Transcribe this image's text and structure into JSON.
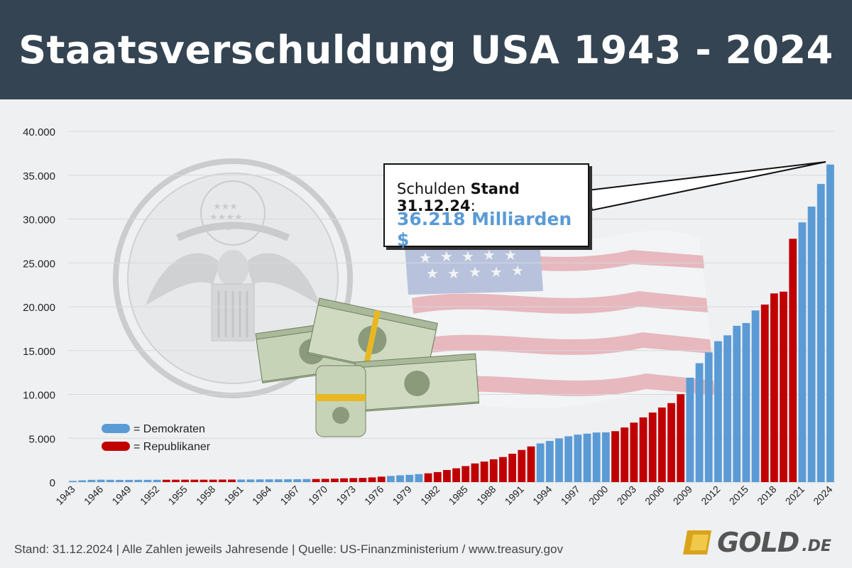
{
  "header": {
    "title": "Staatsverschuldung USA 1943 - 2024"
  },
  "colors": {
    "democrat": "#5b9bd5",
    "republican": "#c00000",
    "header_bg": "#344452"
  },
  "callout": {
    "prefix": "Schulden ",
    "bold": "Stand 31.12.24",
    "suffix": ":",
    "value": "36.218 Milliarden $"
  },
  "legend": {
    "democrat_label": "= Demokraten",
    "republican_label": "= Republikaner"
  },
  "footer": {
    "text": "Stand: 31.12.2024  |  Alle Zahlen jeweils Jahresende  |  Quelle: US-Finanzministerium / www.treasury.gov"
  },
  "logo": {
    "word": "GOLD",
    "tld": ".DE"
  },
  "decor": {
    "seal_icon": "great-seal-icon",
    "money_icon": "dollar-bills-icon",
    "flag_icon": "us-flag-icon"
  },
  "chart_data": {
    "type": "bar",
    "title": "Staatsverschuldung USA 1943 - 2024",
    "xlabel": "",
    "ylabel": "",
    "ylim": [
      0,
      40000
    ],
    "yticks": [
      0,
      5000,
      10000,
      15000,
      20000,
      25000,
      30000,
      35000,
      40000
    ],
    "ytick_labels": [
      "0",
      "5.000",
      "10.000",
      "15.000",
      "20.000",
      "25.000",
      "30.000",
      "35.000",
      "40.000"
    ],
    "xtick_labels": [
      "1943",
      "1946",
      "1949",
      "1952",
      "1955",
      "1958",
      "1961",
      "1964",
      "1967",
      "1970",
      "1973",
      "1976",
      "1979",
      "1982",
      "1985",
      "1988",
      "1991",
      "1994",
      "1997",
      "2000",
      "2003",
      "2006",
      "2009",
      "2012",
      "2015",
      "2018",
      "2021",
      "2024"
    ],
    "categories": [
      1943,
      1944,
      1945,
      1946,
      1947,
      1948,
      1949,
      1950,
      1951,
      1952,
      1953,
      1954,
      1955,
      1956,
      1957,
      1958,
      1959,
      1960,
      1961,
      1962,
      1963,
      1964,
      1965,
      1966,
      1967,
      1968,
      1969,
      1970,
      1971,
      1972,
      1973,
      1974,
      1975,
      1976,
      1977,
      1978,
      1979,
      1980,
      1981,
      1982,
      1983,
      1984,
      1985,
      1986,
      1987,
      1988,
      1989,
      1990,
      1991,
      1992,
      1993,
      1994,
      1995,
      1996,
      1997,
      1998,
      1999,
      2000,
      2001,
      2002,
      2003,
      2004,
      2005,
      2006,
      2007,
      2008,
      2009,
      2010,
      2011,
      2012,
      2013,
      2014,
      2015,
      2016,
      2017,
      2018,
      2019,
      2020,
      2021,
      2022,
      2023,
      2024
    ],
    "values": [
      137,
      201,
      258,
      270,
      258,
      252,
      253,
      257,
      255,
      259,
      266,
      271,
      274,
      273,
      271,
      276,
      285,
      286,
      289,
      298,
      306,
      312,
      317,
      320,
      326,
      348,
      354,
      371,
      398,
      427,
      458,
      475,
      533,
      620,
      699,
      772,
      827,
      908,
      998,
      1142,
      1377,
      1572,
      1823,
      2125,
      2340,
      2602,
      2857,
      3233,
      3665,
      4065,
      4411,
      4693,
      4974,
      5225,
      5413,
      5526,
      5656,
      5674,
      5807,
      6228,
      6783,
      7379,
      7933,
      8507,
      9008,
      10025,
      11910,
      13562,
      14790,
      16066,
      16738,
      17824,
      18141,
      19573,
      20245,
      21516,
      21716,
      27748,
      29617,
      31419,
      34001,
      36218
    ],
    "parties": [
      "D",
      "D",
      "D",
      "D",
      "D",
      "D",
      "D",
      "D",
      "D",
      "D",
      "R",
      "R",
      "R",
      "R",
      "R",
      "R",
      "R",
      "R",
      "D",
      "D",
      "D",
      "D",
      "D",
      "D",
      "D",
      "D",
      "R",
      "R",
      "R",
      "R",
      "R",
      "R",
      "R",
      "R",
      "D",
      "D",
      "D",
      "D",
      "R",
      "R",
      "R",
      "R",
      "R",
      "R",
      "R",
      "R",
      "R",
      "R",
      "R",
      "R",
      "D",
      "D",
      "D",
      "D",
      "D",
      "D",
      "D",
      "D",
      "R",
      "R",
      "R",
      "R",
      "R",
      "R",
      "R",
      "R",
      "D",
      "D",
      "D",
      "D",
      "D",
      "D",
      "D",
      "D",
      "R",
      "R",
      "R",
      "R",
      "D",
      "D",
      "D",
      "D"
    ],
    "legend": [
      {
        "name": "Demokraten",
        "party": "D"
      },
      {
        "name": "Republikaner",
        "party": "R"
      }
    ],
    "grid": true
  }
}
